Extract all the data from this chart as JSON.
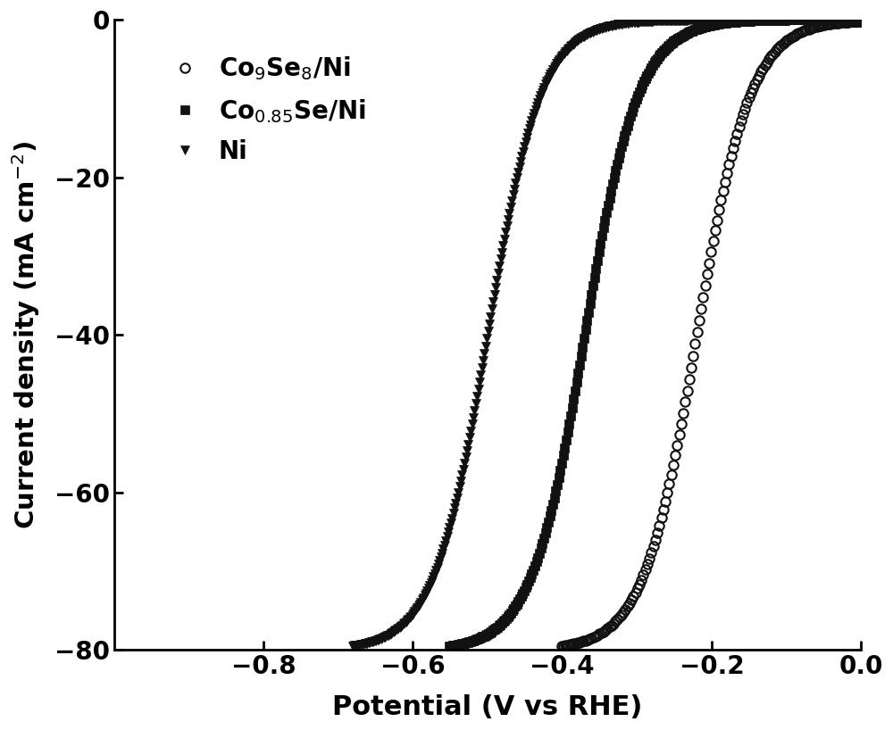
{
  "title": "",
  "xlabel": "Potential (V vs RHE)",
  "ylabel": "Current density (mA cm$^{-2}$)",
  "xlim": [
    -1.0,
    0.0
  ],
  "ylim": [
    -80,
    0
  ],
  "xticks": [
    -0.8,
    -0.6,
    -0.4,
    -0.2,
    0.0
  ],
  "yticks": [
    0,
    -20,
    -40,
    -60,
    -80
  ],
  "series": [
    {
      "label": "Co$_9$Se$_8$/Ni",
      "marker": "o",
      "midpoint": -0.22,
      "steepness": 28,
      "marker_step": 8,
      "markersize": 7.5
    },
    {
      "label": "Co$_{0.85}$Se/Ni",
      "marker": "s",
      "midpoint": -0.37,
      "steepness": 28,
      "marker_step": 6,
      "markersize": 6.5
    },
    {
      "label": "Ni",
      "marker": "v",
      "midpoint": -0.5,
      "steepness": 28,
      "marker_step": 5,
      "markersize": 7.5
    }
  ],
  "background_color": "#ffffff",
  "linewidth": 1.5,
  "legend_loc": "upper left",
  "font_size": 20,
  "label_font_size": 22,
  "tick_label_size": 20
}
